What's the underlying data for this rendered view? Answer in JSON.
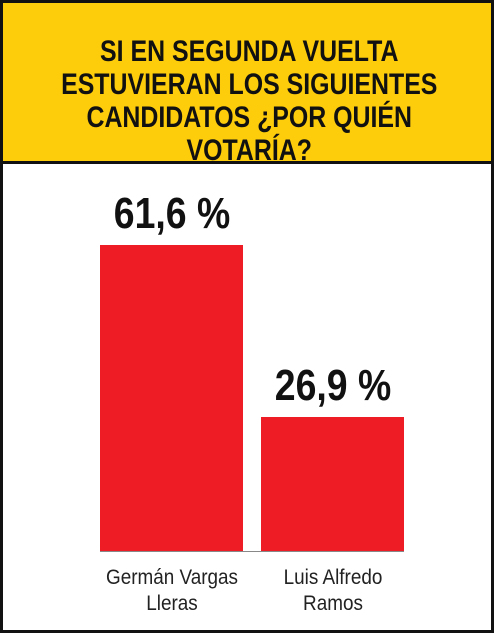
{
  "chart_data": {
    "type": "bar",
    "title": "SI EN SEGUNDA VUELTA ESTUVIERAN LOS SIGUIENTES CANDIDATOS ¿POR QUIÉN VOTARÍA?",
    "categories": [
      "Germán Vargas Lleras",
      "Luis Alfredo Ramos"
    ],
    "values": [
      61.6,
      26.9
    ],
    "value_labels": [
      "61,6 %",
      "26,9 %"
    ],
    "color": "#ee1c25"
  }
}
